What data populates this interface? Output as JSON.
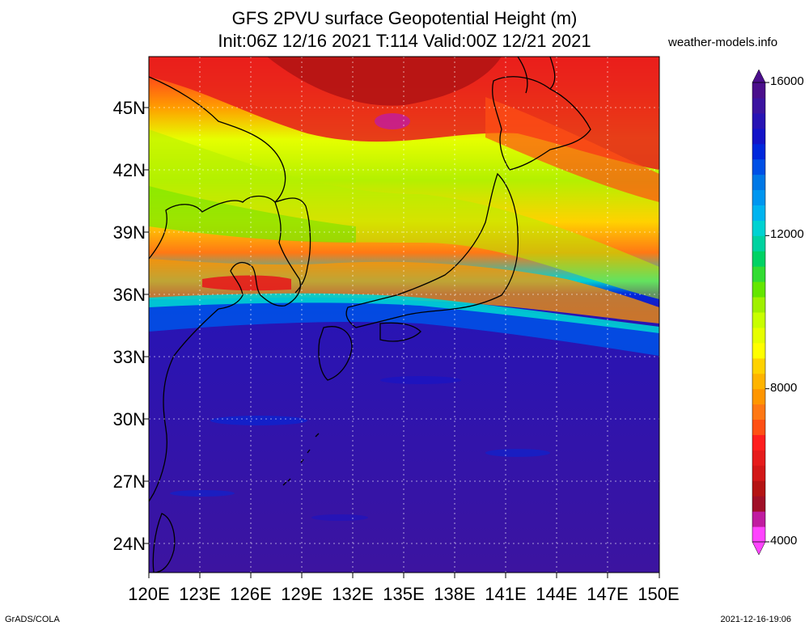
{
  "title": {
    "line1": "GFS 2PVU surface Geopotential Height (m)",
    "line2": "Init:06Z 12/16 2021 T:114 Valid:00Z 12/21 2021"
  },
  "site": "weather-models.info",
  "latitude_labels": [
    "45N",
    "42N",
    "39N",
    "36N",
    "33N",
    "30N",
    "27N",
    "24N"
  ],
  "longitude_labels": [
    "120E",
    "123E",
    "126E",
    "129E",
    "132E",
    "135E",
    "138E",
    "141E",
    "144E",
    "147E",
    "150E"
  ],
  "colorbar": {
    "tick_labels": [
      "16000",
      "12000",
      "8000",
      "4000"
    ],
    "colors": [
      "#ff44ff",
      "#c01ca0",
      "#a01028",
      "#b41414",
      "#d21818",
      "#e61c1c",
      "#ff1e1e",
      "#ff5014",
      "#ff7814",
      "#ff9600",
      "#ffb400",
      "#ffd200",
      "#ffff00",
      "#e6ff00",
      "#c8ff00",
      "#a0f000",
      "#64e600",
      "#32dc32",
      "#00d264",
      "#00d2a0",
      "#00d2d2",
      "#00b4f0",
      "#0096f0",
      "#0078e6",
      "#0050e6",
      "#0028dc",
      "#1414c8",
      "#2814b4",
      "#3c14a0",
      "#4b0f8c"
    ]
  },
  "footer": {
    "left": "GrADS/COLA",
    "right": "2021-12-16-19:06"
  }
}
